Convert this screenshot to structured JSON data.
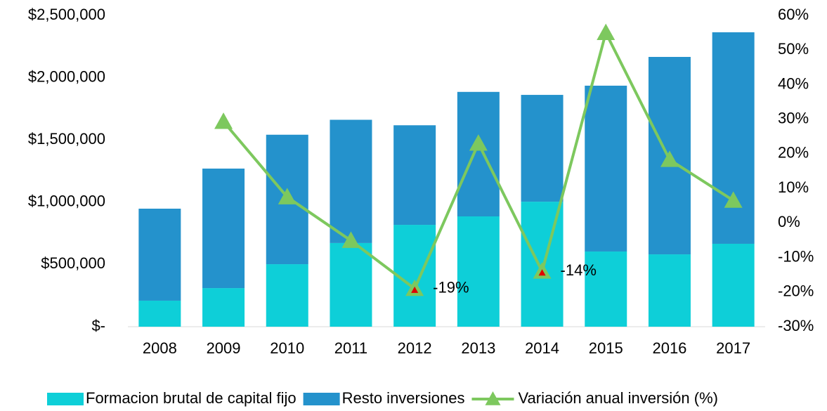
{
  "chart_data": {
    "type": "bar",
    "categories": [
      "2008",
      "2009",
      "2010",
      "2011",
      "2012",
      "2013",
      "2014",
      "2015",
      "2016",
      "2017"
    ],
    "series": [
      {
        "name": "Formacion brutal de capital fijo",
        "color": "#0ecfd8",
        "values": [
          209000,
          310000,
          502000,
          672000,
          818000,
          886000,
          1004000,
          604000,
          581000,
          666000
        ]
      },
      {
        "name": "Resto inversiones",
        "color": "#2492cc",
        "values": [
          739000,
          960000,
          1040000,
          990000,
          800000,
          1000000,
          858000,
          1332000,
          1586000,
          1699000
        ]
      },
      {
        "name": "Variación anual inversión (%)",
        "color": "#7dc85e",
        "type": "line",
        "axis": "y2",
        "marker": "triangle",
        "values": [
          null,
          29.3,
          7.5,
          -5.1,
          -19,
          23,
          -14,
          55,
          18.3,
          6.5
        ],
        "value_labels": [
          null,
          null,
          null,
          null,
          "-19%",
          null,
          "-14%",
          null,
          null,
          null
        ],
        "label_marker_color": "#e00000"
      }
    ],
    "ylim": [
      0,
      2500000
    ],
    "yticks": [
      {
        "value": 0,
        "label": "$-"
      },
      {
        "value": 500000,
        "label": "$500,000"
      },
      {
        "value": 1000000,
        "label": "$1,000,000"
      },
      {
        "value": 1500000,
        "label": "$1,500,000"
      },
      {
        "value": 2000000,
        "label": "$2,000,000"
      },
      {
        "value": 2500000,
        "label": "$2,500,000"
      }
    ],
    "y2lim": [
      -30,
      60
    ],
    "y2ticks": [
      {
        "value": -30,
        "label": "-30%"
      },
      {
        "value": -20,
        "label": "-20%"
      },
      {
        "value": -10,
        "label": "-10%"
      },
      {
        "value": 0,
        "label": "0%"
      },
      {
        "value": 10,
        "label": "10%"
      },
      {
        "value": 20,
        "label": "20%"
      },
      {
        "value": 30,
        "label": "30%"
      },
      {
        "value": 40,
        "label": "40%"
      },
      {
        "value": 50,
        "label": "50%"
      },
      {
        "value": 60,
        "label": "60%"
      }
    ],
    "grid": false,
    "legend": "bottom"
  }
}
